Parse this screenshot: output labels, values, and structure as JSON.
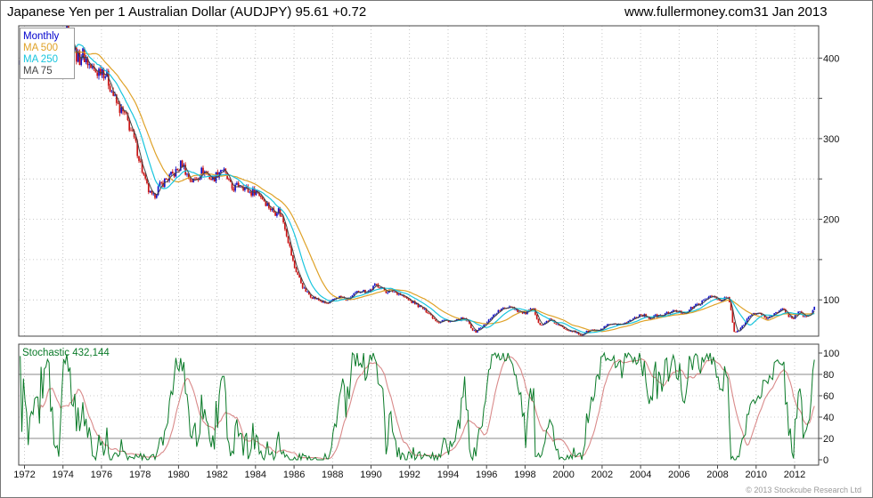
{
  "header": {
    "title": "Japanese Yen per 1 Australian Dollar (AUDJPY) 95.61 +0.72",
    "website": "www.fullermoney.com",
    "date": "31 Jan 2013"
  },
  "footer": {
    "copyright": "© 2013 Stockcube Research Ltd"
  },
  "chart_data": [
    {
      "type": "candlestick",
      "title": "Japanese Yen per 1 Australian Dollar (AUDJPY)",
      "last_price": 95.61,
      "change": "+0.72",
      "timeframe": "Monthly",
      "legend": [
        {
          "label": "Monthly",
          "color": "#0000cc"
        },
        {
          "label": "MA 500",
          "color": "#dfa228"
        },
        {
          "label": "MA 250",
          "color": "#18c5dd"
        },
        {
          "label": "MA 75",
          "color": "#444444"
        }
      ],
      "up_color": "#1414c8",
      "down_color": "#c81414",
      "ylim": [
        55,
        440
      ],
      "y_ticks": [
        100,
        200,
        300,
        400
      ],
      "y_grid_step": 50,
      "x_range": [
        1971.7,
        2013.25
      ],
      "x_ticks": [
        1972,
        1974,
        1976,
        1978,
        1980,
        1982,
        1984,
        1986,
        1988,
        1990,
        1992,
        1994,
        1996,
        1998,
        2000,
        2002,
        2004,
        2006,
        2008,
        2010,
        2012
      ],
      "ma_windows_months": {
        "ma75": 4,
        "ma250": 12,
        "ma500": 23
      },
      "price_anchors": [
        [
          1971.75,
          392
        ],
        [
          1972.0,
          388
        ],
        [
          1972.25,
          378
        ],
        [
          1972.5,
          382
        ],
        [
          1972.75,
          388
        ],
        [
          1973.0,
          402
        ],
        [
          1973.17,
          424
        ],
        [
          1973.33,
          408
        ],
        [
          1973.5,
          392
        ],
        [
          1973.67,
          378
        ],
        [
          1973.83,
          385
        ],
        [
          1974.0,
          420
        ],
        [
          1974.17,
          452
        ],
        [
          1974.33,
          430
        ],
        [
          1974.5,
          415
        ],
        [
          1974.67,
          405
        ],
        [
          1974.83,
          398
        ],
        [
          1975.0,
          406
        ],
        [
          1975.25,
          396
        ],
        [
          1975.5,
          386
        ],
        [
          1975.75,
          382
        ],
        [
          1976.0,
          388
        ],
        [
          1976.25,
          378
        ],
        [
          1976.5,
          362
        ],
        [
          1976.75,
          345
        ],
        [
          1977.0,
          335
        ],
        [
          1977.25,
          328
        ],
        [
          1977.5,
          312
        ],
        [
          1977.75,
          295
        ],
        [
          1978.0,
          272
        ],
        [
          1978.25,
          248
        ],
        [
          1978.5,
          232
        ],
        [
          1978.67,
          226
        ],
        [
          1978.83,
          234
        ],
        [
          1979.0,
          240
        ],
        [
          1979.25,
          247
        ],
        [
          1979.5,
          252
        ],
        [
          1979.75,
          256
        ],
        [
          1980.0,
          262
        ],
        [
          1980.17,
          271
        ],
        [
          1980.33,
          262
        ],
        [
          1980.5,
          252
        ],
        [
          1980.75,
          247
        ],
        [
          1981.0,
          253
        ],
        [
          1981.25,
          261
        ],
        [
          1981.5,
          256
        ],
        [
          1981.75,
          249
        ],
        [
          1982.0,
          256
        ],
        [
          1982.25,
          264
        ],
        [
          1982.5,
          252
        ],
        [
          1982.75,
          238
        ],
        [
          1983.0,
          240
        ],
        [
          1983.25,
          244
        ],
        [
          1983.5,
          238
        ],
        [
          1983.75,
          233
        ],
        [
          1984.0,
          236
        ],
        [
          1984.25,
          230
        ],
        [
          1984.5,
          222
        ],
        [
          1984.75,
          214
        ],
        [
          1985.0,
          208
        ],
        [
          1985.17,
          213
        ],
        [
          1985.33,
          204
        ],
        [
          1985.5,
          194
        ],
        [
          1985.75,
          168
        ],
        [
          1986.0,
          142
        ],
        [
          1986.25,
          128
        ],
        [
          1986.5,
          114
        ],
        [
          1986.75,
          107
        ],
        [
          1987.0,
          103
        ],
        [
          1987.25,
          100
        ],
        [
          1987.5,
          97
        ],
        [
          1987.75,
          95
        ],
        [
          1988.0,
          99
        ],
        [
          1988.25,
          104
        ],
        [
          1988.5,
          103
        ],
        [
          1988.75,
          100
        ],
        [
          1989.0,
          104
        ],
        [
          1989.25,
          109
        ],
        [
          1989.5,
          112
        ],
        [
          1989.75,
          110
        ],
        [
          1990.0,
          113
        ],
        [
          1990.25,
          119
        ],
        [
          1990.5,
          116
        ],
        [
          1990.75,
          110
        ],
        [
          1991.0,
          112
        ],
        [
          1991.25,
          110
        ],
        [
          1991.5,
          107
        ],
        [
          1991.75,
          103
        ],
        [
          1992.0,
          99
        ],
        [
          1992.25,
          96
        ],
        [
          1992.5,
          92
        ],
        [
          1992.75,
          88
        ],
        [
          1993.0,
          84
        ],
        [
          1993.25,
          77
        ],
        [
          1993.5,
          72
        ],
        [
          1993.75,
          75
        ],
        [
          1994.0,
          74
        ],
        [
          1994.25,
          73
        ],
        [
          1994.5,
          75
        ],
        [
          1994.75,
          77
        ],
        [
          1995.0,
          74
        ],
        [
          1995.25,
          64
        ],
        [
          1995.42,
          60
        ],
        [
          1995.58,
          64
        ],
        [
          1995.75,
          66
        ],
        [
          1996.0,
          71
        ],
        [
          1996.25,
          79
        ],
        [
          1996.5,
          84
        ],
        [
          1996.75,
          88
        ],
        [
          1997.0,
          90
        ],
        [
          1997.25,
          93
        ],
        [
          1997.5,
          88
        ],
        [
          1997.75,
          85
        ],
        [
          1998.0,
          83
        ],
        [
          1998.25,
          87
        ],
        [
          1998.42,
          89
        ],
        [
          1998.58,
          80
        ],
        [
          1998.75,
          70
        ],
        [
          1998.92,
          68
        ],
        [
          1999.08,
          73
        ],
        [
          1999.25,
          76
        ],
        [
          1999.5,
          72
        ],
        [
          1999.75,
          68
        ],
        [
          2000.0,
          65
        ],
        [
          2000.25,
          63
        ],
        [
          2000.5,
          61
        ],
        [
          2000.75,
          58
        ],
        [
          2000.92,
          56
        ],
        [
          2001.08,
          59
        ],
        [
          2001.25,
          61
        ],
        [
          2001.5,
          63
        ],
        [
          2001.75,
          61
        ],
        [
          2002.0,
          64
        ],
        [
          2002.25,
          68
        ],
        [
          2002.5,
          70
        ],
        [
          2002.75,
          68
        ],
        [
          2003.0,
          70
        ],
        [
          2003.25,
          72
        ],
        [
          2003.5,
          75
        ],
        [
          2003.75,
          79
        ],
        [
          2004.0,
          82
        ],
        [
          2004.25,
          80
        ],
        [
          2004.5,
          77
        ],
        [
          2004.75,
          80
        ],
        [
          2005.0,
          80
        ],
        [
          2005.25,
          82
        ],
        [
          2005.5,
          85
        ],
        [
          2005.75,
          86
        ],
        [
          2006.0,
          85
        ],
        [
          2006.25,
          84
        ],
        [
          2006.5,
          87
        ],
        [
          2006.75,
          92
        ],
        [
          2007.0,
          95
        ],
        [
          2007.25,
          98
        ],
        [
          2007.5,
          103
        ],
        [
          2007.67,
          107
        ],
        [
          2007.83,
          103
        ],
        [
          2008.0,
          100
        ],
        [
          2008.17,
          98
        ],
        [
          2008.33,
          101
        ],
        [
          2008.5,
          104
        ],
        [
          2008.67,
          93
        ],
        [
          2008.83,
          62
        ],
        [
          2008.92,
          58
        ],
        [
          2009.0,
          61
        ],
        [
          2009.17,
          64
        ],
        [
          2009.33,
          69
        ],
        [
          2009.5,
          76
        ],
        [
          2009.75,
          81
        ],
        [
          2010.0,
          84
        ],
        [
          2010.25,
          83
        ],
        [
          2010.5,
          76
        ],
        [
          2010.75,
          81
        ],
        [
          2011.0,
          83
        ],
        [
          2011.25,
          86
        ],
        [
          2011.42,
          89
        ],
        [
          2011.58,
          83
        ],
        [
          2011.75,
          79
        ],
        [
          2011.92,
          77
        ],
        [
          2012.08,
          82
        ],
        [
          2012.25,
          85
        ],
        [
          2012.42,
          81
        ],
        [
          2012.58,
          79
        ],
        [
          2012.75,
          81
        ],
        [
          2012.92,
          85
        ],
        [
          2013.08,
          95.6
        ]
      ]
    },
    {
      "type": "line",
      "title": "Stochastic 432,144",
      "title_color": "#0a7a28",
      "ylim": [
        0,
        100
      ],
      "y_ticks": [
        0,
        20,
        40,
        60,
        80,
        100
      ],
      "overbought": 80,
      "oversold": 20,
      "series": [
        {
          "name": "stochastic-fast",
          "color": "#0a7a28",
          "window_months": 20
        },
        {
          "name": "stochastic-slow",
          "color": "#d98a8a",
          "smooth_months": 12
        }
      ]
    }
  ]
}
